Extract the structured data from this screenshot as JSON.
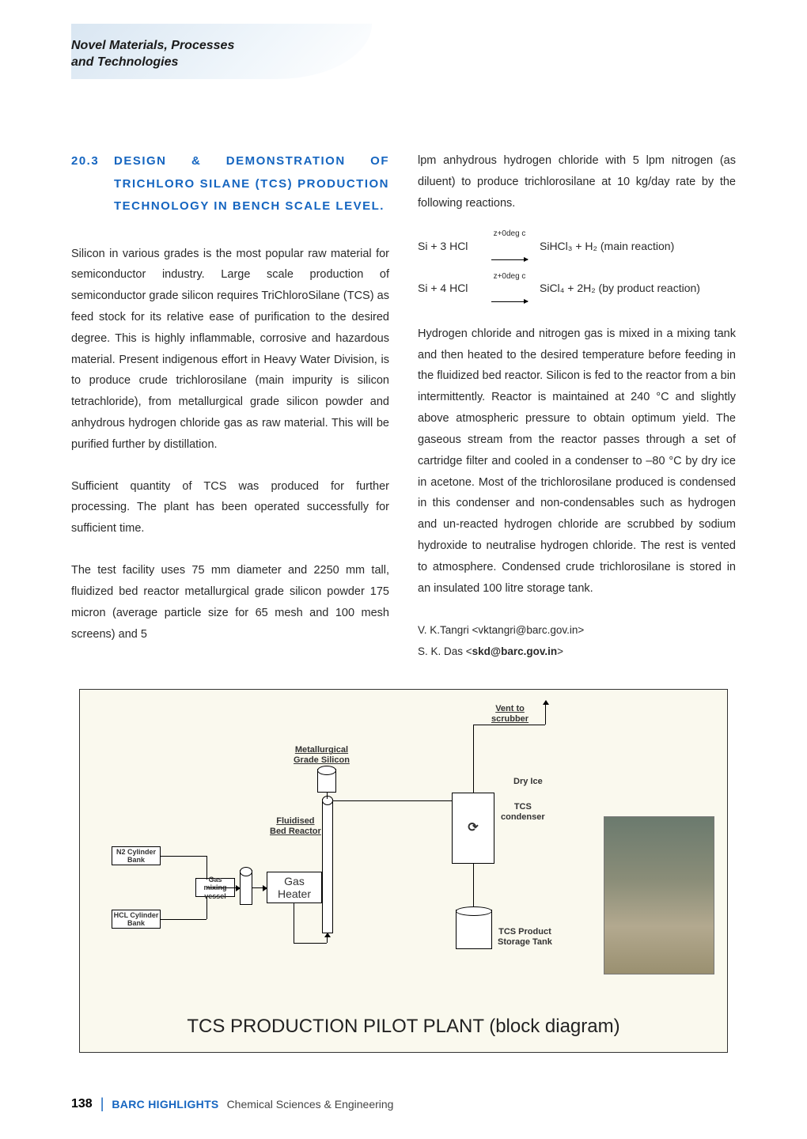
{
  "header": {
    "line1": "Novel Materials, Processes",
    "line2": "and Technologies"
  },
  "section": {
    "number": "20.3",
    "title": "DESIGN & DEMONSTRATION OF TRICHLORO SILANE (TCS) PRODUCTION TECHNOLOGY IN BENCH SCALE LEVEL."
  },
  "col1": {
    "p1": "Silicon in various grades is the most popular raw material for semiconductor industry. Large scale production of semiconductor grade silicon requires TriChloroSilane (TCS) as feed stock for its relative ease of purification to the desired degree. This is highly inflammable, corrosive and hazardous material. Present indigenous effort in Heavy Water Division, is to produce crude trichlorosilane (main impurity is silicon tetrachloride), from metallurgical grade silicon powder and anhydrous hydrogen chloride gas as raw material. This will be purified further by distillation.",
    "p2": "Sufficient quantity of TCS was produced for further processing. The plant has been operated successfully for sufficient time.",
    "p3": "The test facility uses 75 mm diameter and 2250 mm tall, fluidized bed reactor metallurgical grade silicon powder 175 micron (average particle size for 65 mesh and 100 mesh screens) and 5"
  },
  "col2": {
    "p1": "lpm anhydrous hydrogen chloride with 5 lpm nitrogen (as diluent) to produce trichlorosilane at 10 kg/day rate by the following reactions.",
    "rxn1_left": "Si + 3 HCl",
    "rxn1_cond": "z+0deg c",
    "rxn1_right": "SiHCl₃ + H₂  (main reaction)",
    "rxn2_left": "Si + 4 HCl",
    "rxn2_cond": "z+0deg c",
    "rxn2_right": "SiCl₄ + 2H₂  (by product reaction)",
    "p2": "Hydrogen chloride and nitrogen gas is mixed in a mixing tank and then heated to the desired temperature before feeding in the fluidized bed reactor. Silicon is fed to the reactor from a bin intermittently. Reactor is maintained at 240 °C and slightly above atmospheric pressure to obtain optimum yield. The gaseous stream from the reactor passes through a set of cartridge filter and cooled in a condenser to –80 °C by dry ice in acetone. Most of the trichlorosilane produced is condensed in this condenser and non-condensables such as hydrogen and un-reacted hydrogen chloride are scrubbed by sodium hydroxide to neutralise hydrogen chloride. The rest is vented to atmosphere. Condensed crude trichlorosilane is stored in an insulated 100 litre storage tank.",
    "author1": "V. K.Tangri <vktangri@barc.gov.in>",
    "author2_name": "S. K. Das <",
    "author2_email": "skd@barc.gov.in",
    "author2_close": ">"
  },
  "figure": {
    "caption": "TCS PRODUCTION PILOT PLANT (block diagram)",
    "labels": {
      "vent": "Vent to\nscrubber",
      "mgs": "Metallurgical\nGrade Silicon",
      "dryice": "Dry Ice",
      "fbr": "Fluidised\nBed Reactor",
      "tcsc": "TCS\ncondenser",
      "n2": "N2 Cylinder\nBank",
      "gmv": "Gas mixing\nvessel",
      "gh": "Gas\nHeater",
      "hcl": "HCL Cylinder\nBank",
      "tcsp": "TCS Product\nStorage Tank"
    }
  },
  "footer": {
    "page": "138",
    "highlights": "BARC HIGHLIGHTS",
    "tail": "Chemical Sciences & Engineering"
  }
}
